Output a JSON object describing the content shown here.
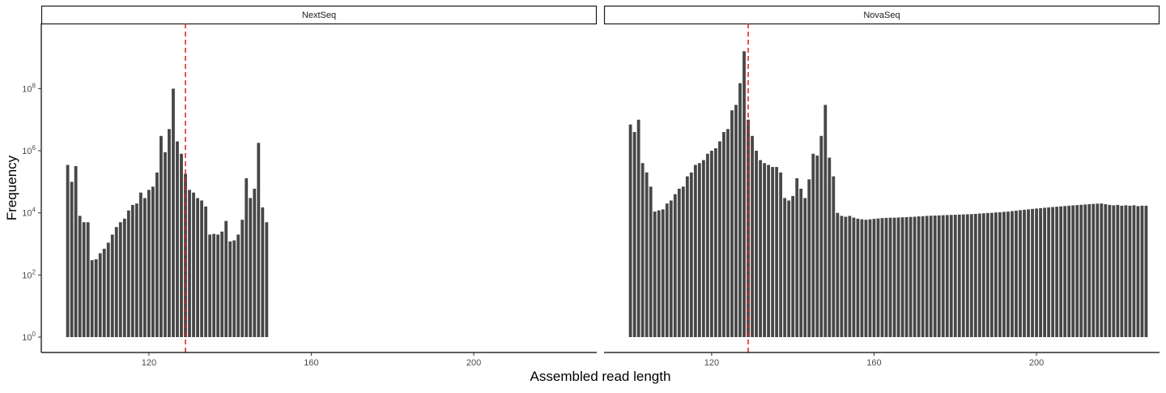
{
  "chart_data": {
    "type": "bar",
    "xlabel": "Assembled read length",
    "ylabel": "Frequency",
    "y_scale": "log10",
    "ylim": [
      1,
      4000000000
    ],
    "xlim": [
      93.5,
      230.3
    ],
    "x_ticks": [
      120,
      160,
      200
    ],
    "y_ticks": [
      {
        "value": 1,
        "base": "10",
        "exp": "0"
      },
      {
        "value": 100,
        "base": "10",
        "exp": "2"
      },
      {
        "value": 10000,
        "base": "10",
        "exp": "4"
      },
      {
        "value": 1000000,
        "base": "10",
        "exp": "6"
      },
      {
        "value": 100000000,
        "base": "10",
        "exp": "8"
      }
    ],
    "reference_line": {
      "x": 129,
      "color": "#e41a1c",
      "style": "dashed"
    },
    "bar_color": "#474747",
    "grid": false,
    "panels": [
      {
        "name": "NextSeq",
        "x_start": 100,
        "values": [
          350000,
          100000,
          320000,
          8000,
          5000,
          5000,
          300,
          320,
          500,
          700,
          1100,
          2000,
          3500,
          5000,
          6500,
          12000,
          18000,
          20000,
          45000,
          30000,
          55000,
          70000,
          200000,
          3000000,
          900000,
          5000000,
          100000000,
          2000000,
          800000,
          180000,
          55000,
          45000,
          30000,
          25000,
          16000,
          2000,
          2100,
          2000,
          2500,
          5500,
          1200,
          1300,
          2000,
          6000,
          130000,
          30000,
          60000,
          1800000,
          15000,
          5000
        ]
      },
      {
        "name": "NovaSeq",
        "x_start": 100,
        "values": [
          7000000,
          4000000,
          10000000,
          400000,
          200000,
          70000,
          11000,
          12000,
          13000,
          20000,
          25000,
          40000,
          60000,
          70000,
          150000,
          200000,
          350000,
          400000,
          500000,
          800000,
          1000000,
          1200000,
          2000000,
          4000000,
          5000000,
          20000000,
          30000000,
          150000000,
          1600000000,
          10000000,
          3000000,
          1000000,
          500000,
          400000,
          350000,
          300000,
          300000,
          200000,
          30000,
          25000,
          35000,
          130000,
          60000,
          30000,
          120000,
          800000,
          700000,
          3000000,
          30000000,
          600000,
          150000,
          10000,
          8000,
          7500,
          8000,
          7000,
          6500,
          6200,
          6000,
          6200,
          6400,
          6600,
          6800,
          6900,
          7000,
          7000,
          7100,
          7200,
          7300,
          7400,
          7500,
          7700,
          7800,
          8000,
          8100,
          8200,
          8300,
          8400,
          8500,
          8600,
          8700,
          8800,
          8900,
          9000,
          9100,
          9300,
          9500,
          9700,
          9900,
          10000,
          10300,
          10500,
          10800,
          11000,
          11400,
          11800,
          12200,
          12600,
          13000,
          13400,
          13800,
          14200,
          14600,
          15000,
          15400,
          15800,
          16200,
          16600,
          17000,
          17400,
          17800,
          18200,
          18600,
          19000,
          19400,
          19800,
          20000,
          19000,
          18000,
          17500,
          18000,
          17000,
          17500,
          17000,
          17500,
          16500,
          17000,
          17000
        ]
      }
    ]
  }
}
